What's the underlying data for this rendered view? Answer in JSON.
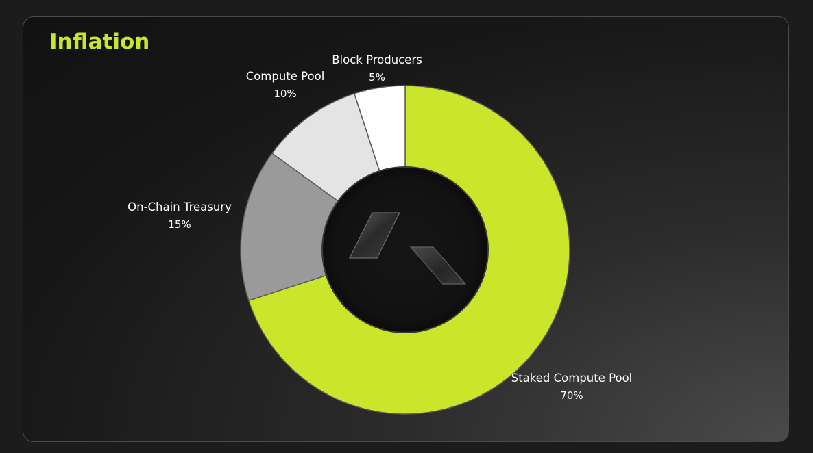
{
  "colors": {
    "accent": "#cbe62a",
    "background": "#161616"
  },
  "logo": {
    "icon": "logo-mark-icon"
  },
  "chart_data": {
    "type": "pie",
    "title": "Inflation",
    "donut": true,
    "slices": [
      {
        "label": "Staked Compute Pool",
        "value": 70,
        "value_label": "70%",
        "color": "#cbe62a"
      },
      {
        "label": "On-Chain Treasury",
        "value": 15,
        "value_label": "15%",
        "color": "#9a9a9a"
      },
      {
        "label": "Compute Pool",
        "value": 10,
        "value_label": "10%",
        "color": "#e4e4e4"
      },
      {
        "label": "Block Producers",
        "value": 5,
        "value_label": "5%",
        "color": "#ffffff"
      }
    ]
  }
}
